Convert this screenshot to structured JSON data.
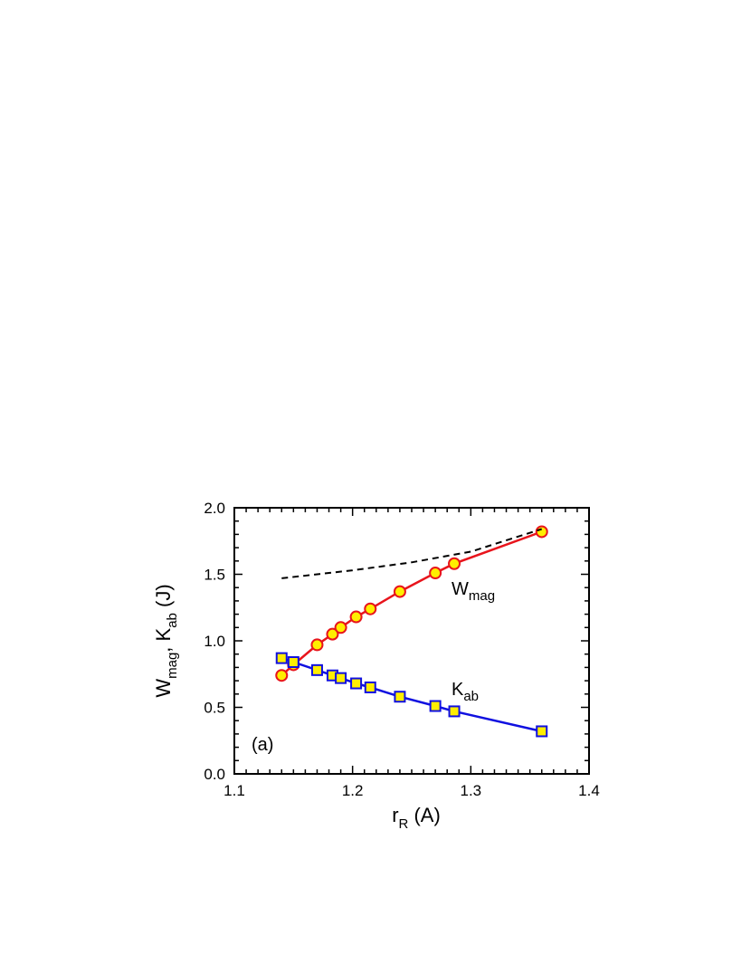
{
  "chart_data": {
    "type": "line",
    "panel_label": "(a)",
    "xlabel": {
      "main": "r",
      "sub": "R",
      "rest": " (A)"
    },
    "ylabel": {
      "w": "W",
      "w_sub": "mag",
      "mid": ", K",
      "k_sub": "ab",
      "rest": " (J)"
    },
    "xlim": [
      1.1,
      1.4
    ],
    "ylim": [
      0.0,
      2.0
    ],
    "xticks": [
      1.1,
      1.2,
      1.3,
      1.4
    ],
    "xtick_labels": [
      "1.1",
      "1.2",
      "1.3",
      "1.4"
    ],
    "yticks": [
      0.0,
      0.5,
      1.0,
      1.5,
      2.0
    ],
    "ytick_labels": [
      "0.0",
      "0.5",
      "1.0",
      "1.5",
      "2.0"
    ],
    "grid": false,
    "series": [
      {
        "name": "W_mag",
        "label_main": "W",
        "label_sub": "mag",
        "color": "#e8141c",
        "marker": "circle",
        "marker_fill": "#ffee00",
        "x": [
          1.14,
          1.15,
          1.17,
          1.183,
          1.19,
          1.203,
          1.215,
          1.24,
          1.27,
          1.286,
          1.36
        ],
        "y": [
          0.74,
          0.82,
          0.97,
          1.05,
          1.1,
          1.18,
          1.24,
          1.37,
          1.51,
          1.58,
          1.82
        ]
      },
      {
        "name": "K_ab",
        "label_main": "K",
        "label_sub": "ab",
        "color": "#1010e0",
        "marker": "square",
        "marker_fill": "#ffee00",
        "x": [
          1.14,
          1.15,
          1.17,
          1.183,
          1.19,
          1.203,
          1.215,
          1.24,
          1.27,
          1.286,
          1.36
        ],
        "y": [
          0.87,
          0.84,
          0.78,
          0.74,
          0.72,
          0.68,
          0.65,
          0.58,
          0.51,
          0.47,
          0.32
        ]
      },
      {
        "name": "",
        "color": "#000000",
        "style": "dashed",
        "x": [
          1.14,
          1.2,
          1.25,
          1.3,
          1.36
        ],
        "y": [
          1.47,
          1.53,
          1.59,
          1.67,
          1.84
        ]
      }
    ]
  }
}
